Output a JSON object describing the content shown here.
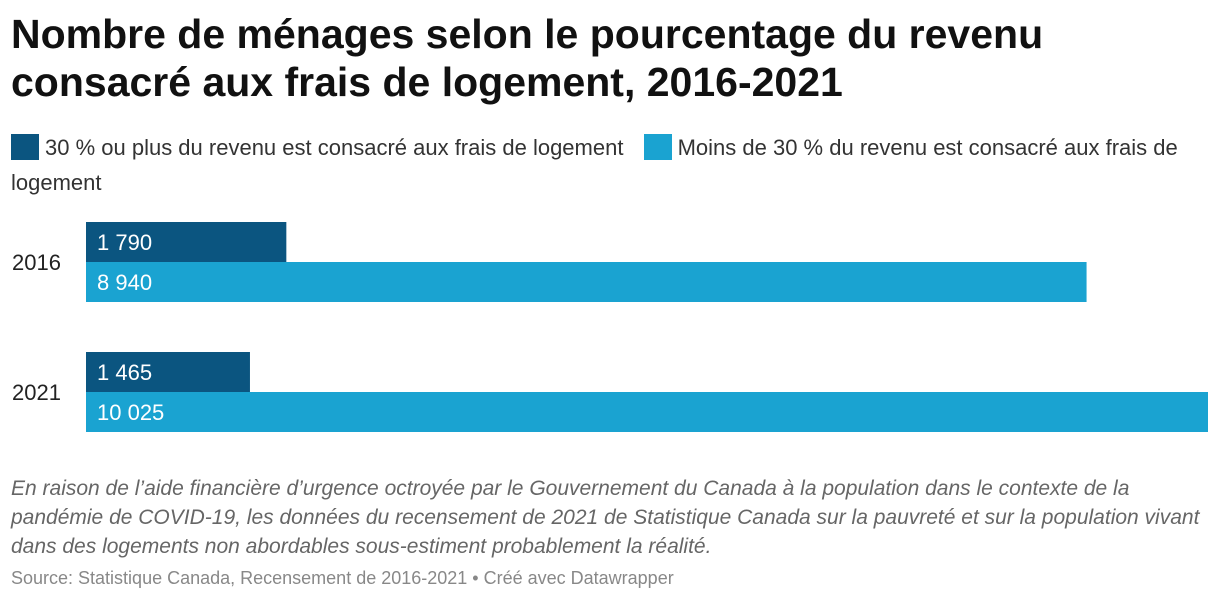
{
  "title": "Nombre de ménages selon le pourcentage du revenu consacré aux frais de logement, 2016-2021",
  "note": "En raison de l’aide financière d’urgence octroyée par le Gouvernement du Canada à la population dans le contexte de la pandémie de COVID-19, les données du recensement de 2021 de Statistique Canada sur la pauvreté et sur la population vivant dans des logements non abordables sous-estiment probablement la réalité.",
  "source": "Source: Statistique Canada, Recensement de 2016-2021 • Créé avec Datawrapper",
  "colors": {
    "dark": "#0b5580",
    "light": "#1aa3d1"
  },
  "chart_data": {
    "type": "bar",
    "orientation": "horizontal",
    "grouped": true,
    "categories": [
      "2016",
      "2021"
    ],
    "series": [
      {
        "name": "30 % ou plus du revenu est consacré aux frais de logement",
        "values": [
          1790,
          1465
        ],
        "labels": [
          "1 790",
          "1 465"
        ],
        "color": "#0b5580"
      },
      {
        "name": "Moins de 30 % du revenu est consacré aux frais de logement",
        "values": [
          8940,
          10025
        ],
        "labels": [
          "8 940",
          "10 025"
        ],
        "color": "#1aa3d1"
      }
    ],
    "xlim": [
      0,
      10025
    ],
    "legend_position": "top",
    "grid": false,
    "xlabel": "",
    "ylabel": ""
  }
}
